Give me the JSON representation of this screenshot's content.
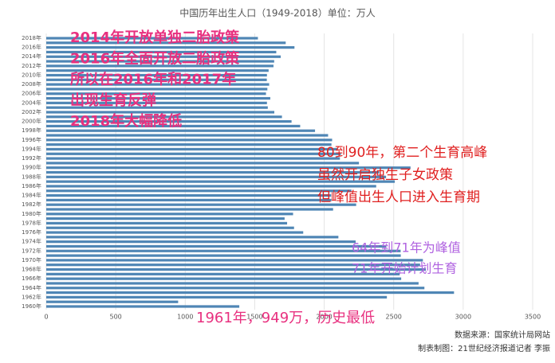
{
  "chart_data": {
    "type": "barh",
    "title": "中国历年出生人口（1949-2018）单位：万人",
    "categories": [
      "2018年",
      null,
      "2016年",
      null,
      "2014年",
      null,
      "2012年",
      null,
      "2010年",
      null,
      "2008年",
      null,
      "2006年",
      null,
      "2004年",
      null,
      "2002年",
      null,
      "2000年",
      null,
      "1998年",
      null,
      "1996年",
      null,
      "1994年",
      null,
      "1992年",
      null,
      "1990年",
      null,
      "1988年",
      null,
      "1986年",
      null,
      "1984年",
      null,
      "1982年",
      null,
      "1980年",
      null,
      "1978年",
      null,
      "1976年",
      null,
      "1974年",
      null,
      "1972年",
      null,
      "1970年",
      null,
      "1968年",
      null,
      "1966年",
      null,
      "1964年",
      null,
      "1962年",
      null,
      "1960年"
    ],
    "values": [
      1523,
      1723,
      1786,
      1655,
      1687,
      1640,
      1635,
      1600,
      1588,
      1587,
      1604,
      1591,
      1581,
      1612,
      1588,
      1594,
      1641,
      1696,
      1765,
      1827,
      1934,
      2028,
      2057,
      2052,
      2098,
      2120,
      2113,
      2250,
      2621,
      2396,
      2445,
      2508,
      2374,
      2196,
      2050,
      2052,
      2230,
      2064,
      1776,
      1715,
      1733,
      1783,
      1849,
      2102,
      2226,
      2447,
      2550,
      2551,
      2710,
      2690,
      2731,
      2543,
      2554,
      2679,
      2721,
      2934,
      2451,
      949,
      1389
    ],
    "color": "#4f86b5",
    "xlim": [
      0,
      3500
    ],
    "xticks": [
      0,
      500,
      1000,
      1500,
      2000,
      2500,
      3000,
      3500
    ],
    "grid": true,
    "annotations": [
      {
        "color": "#e8307f",
        "lines": [
          "2014年开放单独二胎政策",
          "2016年全面开放二胎政策",
          "所以在2016年和2017年",
          "出现生育反弹",
          "2018年大幅降低"
        ]
      },
      {
        "color": "#e02020",
        "lines": [
          "80到90年，第二个生育高峰",
          "虽然开启独生子女政策",
          "但峰值出生人口进入生育期"
        ]
      },
      {
        "color": "#b063e0",
        "lines": [
          "64年到71年为峰值",
          "71年开始计划生育"
        ]
      },
      {
        "color": "#e8307f",
        "lines": [
          "1961年，949万，历史最低"
        ]
      }
    ],
    "source": "数据来源：国家统计局网站",
    "credit": "制表制图：21世纪经济报道记者 李振"
  }
}
